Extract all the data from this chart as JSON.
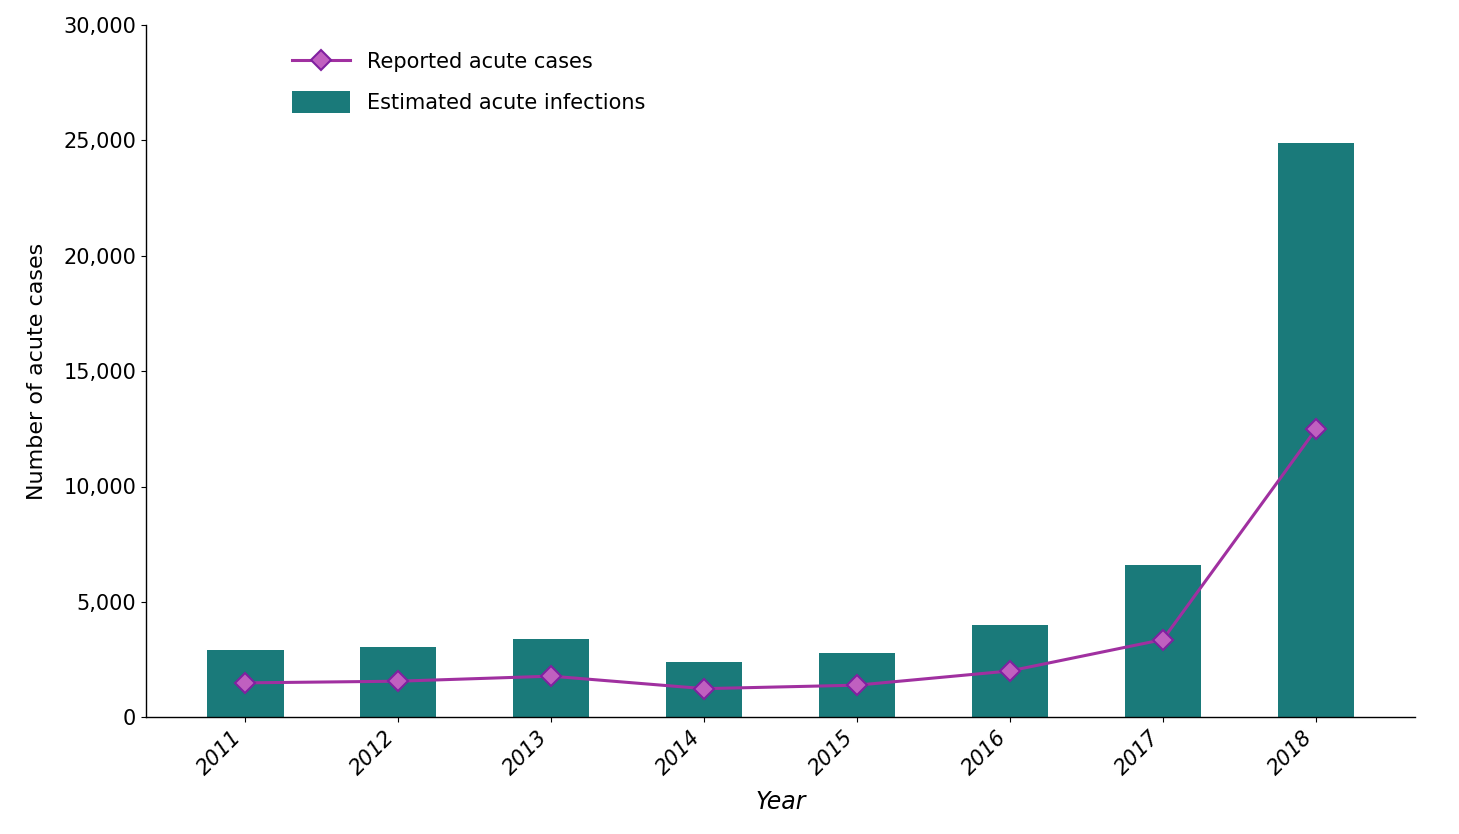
{
  "years": [
    2011,
    2012,
    2013,
    2014,
    2015,
    2016,
    2017,
    2018
  ],
  "reported_cases": [
    1490,
    1562,
    1781,
    1239,
    1390,
    2007,
    3366,
    12474
  ],
  "estimated_infections": [
    2900,
    3050,
    3400,
    2400,
    2800,
    4000,
    6600,
    24900
  ],
  "bar_color": "#1a7a7a",
  "line_color": "#a030a0",
  "line_marker_face": "#c060c0",
  "line_marker_edge": "#8020a0",
  "ylabel": "Number of acute cases",
  "xlabel": "Year",
  "legend_reported": "Reported acute cases",
  "legend_estimated": "Estimated acute infections",
  "ylim": [
    0,
    30000
  ],
  "yticks": [
    0,
    5000,
    10000,
    15000,
    20000,
    25000,
    30000
  ],
  "background_color": "#ffffff",
  "bar_width": 0.5,
  "line_width": 2.2,
  "marker_size": 10
}
